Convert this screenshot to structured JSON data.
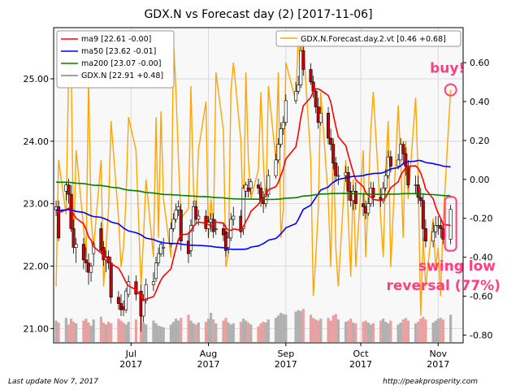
{
  "chart_data": {
    "type": "candlestick",
    "title": "GDX.N vs Forecast day (2)  [2017-11-06]",
    "left_axis": {
      "ylim": [
        20.77,
        25.82
      ],
      "ticks": [
        21.0,
        22.0,
        23.0,
        24.0,
        25.0
      ],
      "tick_labels": [
        "21.00",
        "22.00",
        "23.00",
        "24.00",
        "25.00"
      ]
    },
    "right_axis": {
      "ylim": [
        -0.84,
        0.78
      ],
      "ticks": [
        0.6,
        0.4,
        0.2,
        0.0,
        -0.2,
        -0.4,
        -0.6,
        -0.8
      ],
      "tick_labels": [
        "0.60",
        "0.40",
        "0.20",
        "0.00",
        "-0.20",
        "-0.40",
        "-0.60",
        "-0.80"
      ]
    },
    "x_axis": {
      "range": [
        "2017-05-31",
        "2017-11-11"
      ],
      "ticks": [
        {
          "date": "2017-07-01",
          "label": "Jul",
          "year": "2017"
        },
        {
          "date": "2017-08-01",
          "label": "Aug",
          "year": "2017"
        },
        {
          "date": "2017-09-01",
          "label": "Sep",
          "year": "2017"
        },
        {
          "date": "2017-10-01",
          "label": "Oct",
          "year": "2017"
        },
        {
          "date": "2017-11-01",
          "label": "Nov",
          "year": "2017"
        }
      ]
    },
    "grid": true,
    "legend_left": {
      "placement": "top-left",
      "entries": [
        {
          "label": "ma9 [22.61 -0.00]",
          "color": "#ff0000"
        },
        {
          "label": "ma50 [23.62 -0.01]",
          "color": "#0000ff"
        },
        {
          "label": "ma200 [23.07 -0.00]",
          "color": "#008000"
        },
        {
          "label": "GDX.N [22.91 +0.48]",
          "color": "#808080"
        }
      ]
    },
    "legend_right": {
      "placement": "top-right",
      "entries": [
        {
          "label": "GDX.N.Forecast.day.2.vt [0.46 +0.68]",
          "color": "#ffa500"
        }
      ]
    },
    "candles": {
      "dates": [
        "2017-06-01",
        "2017-06-02",
        "2017-06-05",
        "2017-06-06",
        "2017-06-07",
        "2017-06-08",
        "2017-06-09",
        "2017-06-12",
        "2017-06-13",
        "2017-06-14",
        "2017-06-15",
        "2017-06-16",
        "2017-06-19",
        "2017-06-20",
        "2017-06-21",
        "2017-06-22",
        "2017-06-23",
        "2017-06-26",
        "2017-06-27",
        "2017-06-28",
        "2017-06-29",
        "2017-06-30",
        "2017-07-03",
        "2017-07-05",
        "2017-07-06",
        "2017-07-07",
        "2017-07-10",
        "2017-07-11",
        "2017-07-12",
        "2017-07-13",
        "2017-07-14",
        "2017-07-17",
        "2017-07-18",
        "2017-07-19",
        "2017-07-20",
        "2017-07-21",
        "2017-07-24",
        "2017-07-25",
        "2017-07-26",
        "2017-07-27",
        "2017-07-28",
        "2017-07-31",
        "2017-08-01",
        "2017-08-02",
        "2017-08-03",
        "2017-08-04",
        "2017-08-07",
        "2017-08-08",
        "2017-08-09",
        "2017-08-10",
        "2017-08-11",
        "2017-08-14",
        "2017-08-15",
        "2017-08-16",
        "2017-08-17",
        "2017-08-18",
        "2017-08-21",
        "2017-08-22",
        "2017-08-23",
        "2017-08-24",
        "2017-08-25",
        "2017-08-28",
        "2017-08-29",
        "2017-08-30",
        "2017-08-31",
        "2017-09-01",
        "2017-09-05",
        "2017-09-06",
        "2017-09-07",
        "2017-09-08",
        "2017-09-11",
        "2017-09-12",
        "2017-09-13",
        "2017-09-14",
        "2017-09-15",
        "2017-09-18",
        "2017-09-19",
        "2017-09-20",
        "2017-09-21",
        "2017-09-22",
        "2017-09-25",
        "2017-09-26",
        "2017-09-27",
        "2017-09-28",
        "2017-09-29",
        "2017-10-02",
        "2017-10-03",
        "2017-10-04",
        "2017-10-05",
        "2017-10-06",
        "2017-10-09",
        "2017-10-10",
        "2017-10-11",
        "2017-10-12",
        "2017-10-13",
        "2017-10-16",
        "2017-10-17",
        "2017-10-18",
        "2017-10-19",
        "2017-10-20",
        "2017-10-23",
        "2017-10-24",
        "2017-10-25",
        "2017-10-26",
        "2017-10-27",
        "2017-10-30",
        "2017-10-31",
        "2017-11-01",
        "2017-11-02",
        "2017-11-03",
        "2017-11-06"
      ],
      "open": [
        22.9,
        22.95,
        23.2,
        23.3,
        23.15,
        22.6,
        22.3,
        22.35,
        22.1,
        22.05,
        21.9,
        22.2,
        22.6,
        22.3,
        22.1,
        22.15,
        22.05,
        21.5,
        21.4,
        21.35,
        21.3,
        21.55,
        21.75,
        21.6,
        21.2,
        21.45,
        21.7,
        21.8,
        22.05,
        22.2,
        22.3,
        22.35,
        22.6,
        22.75,
        22.9,
        22.9,
        22.4,
        22.25,
        22.65,
        22.95,
        22.75,
        22.8,
        22.6,
        22.7,
        22.75,
        22.6,
        22.6,
        22.55,
        22.3,
        22.45,
        22.75,
        22.8,
        22.6,
        23.2,
        23.25,
        23.25,
        23.3,
        23.25,
        23.1,
        23.0,
        23.15,
        23.45,
        23.7,
        23.95,
        24.2,
        24.3,
        24.65,
        24.8,
        24.9,
        25.45,
        25.15,
        24.95,
        24.8,
        24.55,
        24.3,
        24.45,
        24.05,
        23.95,
        23.65,
        23.45,
        23.45,
        23.5,
        23.2,
        23.05,
        23.2,
        23.0,
        22.95,
        22.85,
        23.0,
        23.25,
        23.1,
        23.05,
        23.25,
        23.45,
        23.75,
        23.6,
        23.7,
        23.95,
        23.8,
        23.6,
        23.3,
        23.3,
        23.1,
        23.05,
        22.6,
        22.4,
        22.55,
        22.65,
        22.65,
        22.6,
        22.43
      ],
      "high": [
        23.05,
        23.05,
        23.35,
        23.4,
        23.3,
        22.75,
        22.45,
        22.45,
        22.3,
        22.2,
        22.05,
        22.4,
        22.7,
        22.4,
        22.25,
        22.25,
        22.15,
        21.6,
        21.55,
        21.45,
        21.65,
        21.85,
        21.85,
        21.7,
        21.55,
        21.8,
        21.9,
        22.15,
        22.3,
        22.4,
        22.45,
        22.7,
        22.85,
        23.0,
        23.05,
        23.0,
        22.55,
        22.75,
        23.05,
        23.05,
        22.9,
        22.9,
        22.8,
        22.85,
        22.85,
        22.75,
        22.7,
        22.65,
        22.55,
        22.85,
        22.95,
        22.9,
        23.3,
        23.35,
        23.4,
        23.4,
        23.4,
        23.35,
        23.2,
        23.25,
        23.55,
        23.8,
        24.05,
        24.3,
        24.4,
        24.75,
        24.95,
        25.05,
        25.55,
        25.65,
        25.25,
        25.05,
        24.85,
        24.7,
        24.55,
        24.55,
        24.2,
        24.05,
        23.75,
        23.6,
        23.6,
        23.6,
        23.35,
        23.3,
        23.35,
        23.15,
        23.05,
        23.1,
        23.35,
        23.35,
        23.25,
        23.35,
        23.55,
        23.85,
        23.85,
        23.8,
        24.05,
        24.0,
        23.9,
        23.7,
        23.45,
        23.45,
        23.25,
        23.15,
        22.75,
        22.7,
        22.8,
        22.8,
        22.75,
        22.7,
        22.98
      ],
      "low": [
        22.8,
        22.4,
        23.05,
        23.0,
        22.55,
        22.2,
        22.05,
        21.95,
        21.9,
        21.7,
        21.75,
        22.0,
        22.2,
        22.0,
        21.9,
        21.95,
        21.4,
        21.3,
        21.2,
        21.2,
        21.25,
        21.5,
        21.45,
        20.95,
        21.1,
        21.4,
        21.6,
        21.75,
        22.0,
        22.15,
        22.15,
        22.3,
        22.55,
        22.7,
        22.8,
        22.25,
        22.05,
        22.15,
        22.55,
        22.7,
        22.65,
        22.55,
        22.45,
        22.55,
        22.45,
        22.5,
        22.4,
        22.15,
        22.2,
        22.4,
        22.65,
        22.45,
        22.5,
        23.1,
        23.1,
        23.15,
        23.15,
        22.95,
        22.85,
        22.95,
        23.1,
        23.4,
        23.65,
        23.9,
        24.1,
        24.25,
        24.6,
        24.75,
        24.85,
        25.05,
        24.9,
        24.7,
        24.45,
        24.2,
        24.25,
        23.95,
        23.85,
        23.55,
        23.35,
        23.3,
        23.35,
        23.05,
        22.95,
        22.9,
        22.9,
        22.8,
        22.75,
        22.8,
        22.95,
        22.95,
        22.95,
        23.0,
        23.2,
        23.4,
        23.5,
        23.55,
        23.7,
        23.65,
        23.45,
        23.25,
        23.15,
        23.0,
        22.95,
        22.4,
        22.3,
        22.3,
        22.45,
        22.5,
        22.45,
        22.35,
        22.35
      ],
      "close": [
        22.95,
        22.45,
        23.3,
        23.15,
        22.6,
        22.3,
        22.35,
        22.1,
        22.05,
        21.9,
        22.0,
        22.35,
        22.25,
        22.1,
        22.15,
        22.05,
        21.5,
        21.4,
        21.3,
        21.3,
        21.6,
        21.75,
        21.55,
        21.2,
        21.45,
        21.7,
        21.75,
        22.05,
        22.2,
        22.35,
        22.3,
        22.6,
        22.75,
        22.9,
        22.95,
        22.4,
        22.2,
        22.65,
        22.95,
        22.75,
        22.8,
        22.6,
        22.7,
        22.75,
        22.55,
        22.6,
        22.5,
        22.25,
        22.45,
        22.75,
        22.8,
        22.55,
        23.25,
        23.3,
        23.2,
        23.35,
        23.25,
        23.05,
        23.0,
        23.15,
        23.45,
        23.7,
        23.95,
        24.2,
        24.3,
        24.65,
        24.8,
        24.9,
        25.45,
        25.15,
        24.95,
        24.8,
        24.55,
        24.3,
        24.45,
        24.05,
        23.95,
        23.65,
        23.45,
        23.45,
        23.5,
        23.2,
        23.05,
        23.2,
        23.0,
        22.95,
        22.85,
        23.0,
        23.25,
        23.1,
        23.05,
        23.25,
        23.45,
        23.75,
        23.6,
        23.7,
        23.95,
        23.8,
        23.6,
        23.3,
        23.3,
        23.1,
        23.05,
        22.6,
        22.4,
        22.55,
        22.65,
        22.65,
        22.6,
        22.43,
        22.91
      ],
      "volume": [
        0.55,
        0.5,
        0.62,
        0.45,
        0.6,
        0.52,
        0.48,
        0.55,
        0.6,
        0.5,
        0.42,
        0.58,
        0.65,
        0.5,
        0.45,
        0.52,
        0.48,
        0.6,
        0.55,
        0.5,
        0.45,
        0.52,
        0.58,
        0.7,
        0.5,
        0.45,
        0.55,
        0.48,
        0.42,
        0.4,
        0.38,
        0.45,
        0.52,
        0.6,
        0.55,
        0.62,
        0.7,
        0.55,
        0.48,
        0.45,
        0.5,
        0.52,
        0.6,
        0.75,
        0.58,
        0.48,
        0.55,
        0.62,
        0.5,
        0.45,
        0.48,
        0.52,
        0.6,
        0.55,
        0.5,
        0.45,
        0.4,
        0.48,
        0.52,
        0.5,
        0.58,
        0.62,
        0.68,
        0.75,
        0.72,
        0.7,
        0.78,
        0.82,
        0.8,
        0.85,
        0.7,
        0.62,
        0.58,
        0.55,
        0.6,
        0.62,
        0.55,
        0.68,
        0.72,
        0.58,
        0.52,
        0.55,
        0.6,
        0.5,
        0.48,
        0.52,
        0.55,
        0.5,
        0.45,
        0.48,
        0.55,
        0.6,
        0.52,
        0.48,
        0.55,
        0.45,
        0.5,
        0.58,
        0.62,
        0.55,
        0.48,
        0.52,
        0.6,
        0.65,
        0.58,
        0.5,
        0.55,
        0.6,
        0.62,
        0.58,
        0.7
      ]
    },
    "forecast": {
      "name": "GDX.N.Forecast.day.2.vt",
      "values": [
        -0.55,
        0.1,
        -0.18,
        0.55,
        0.62,
        -0.35,
        0.15,
        -0.25,
        -0.4,
        0.52,
        -0.2,
        -0.35,
        0.1,
        -0.55,
        -0.35,
        -0.15,
        0.3,
        -0.2,
        -0.45,
        -0.35,
        -0.1,
        0.32,
        0.15,
        -0.55,
        -0.3,
        0.0,
        -0.4,
        0.32,
        -0.3,
        0.35,
        -0.1,
        -0.4,
        0.72,
        0.45,
        0.1,
        -0.2,
        -0.15,
        0.48,
        -0.05,
        -0.2,
        0.15,
        0.4,
        -0.3,
        -0.1,
        -0.25,
        0.55,
        0.25,
        -0.45,
        -0.38,
        0.45,
        0.6,
        0.2,
        -0.25,
        0.55,
        0.1,
        -0.1,
        0.05,
        0.45,
        0.1,
        -0.15,
        0.48,
        0.1,
        0.55,
        -0.3,
        -0.15,
        0.6,
        0.4,
        0.75,
        0.55,
        0.7,
        0.1,
        -0.6,
        -0.4,
        -0.15,
        0.45,
        -0.1,
        -0.45,
        0.2,
        -0.35,
        -0.55,
        0.1,
        -0.2,
        -0.5,
        0.0,
        -0.45,
        0.15,
        -0.4,
        -0.1,
        0.25,
        0.45,
        -0.2,
        -0.4,
        0.05,
        0.3,
        -0.45,
        0.38,
        0.1,
        -0.3,
        0.2,
        -0.1,
        0.42,
        0.0,
        -0.7,
        -0.3,
        -0.55,
        -0.2,
        -0.45,
        -0.35,
        -0.6,
        -0.22,
        0.46
      ]
    },
    "annotations": [
      {
        "text": "buy!",
        "anchor_date": "2017-11-06",
        "anchor_value": 0.46
      },
      {
        "text": "swing low",
        "line": 1
      },
      {
        "text": "reversal (77%)",
        "line": 2
      }
    ],
    "marker_colors": {
      "up_candle": "#ffffff",
      "down_candle": "#cc0000",
      "vol_up": "#b0b0b0",
      "vol_down": "#e8a0a0",
      "highlight": "#ff3d7f"
    }
  },
  "footer": {
    "left": "Last update Nov  7, 2017",
    "right": "http://peakprosperity.com"
  }
}
